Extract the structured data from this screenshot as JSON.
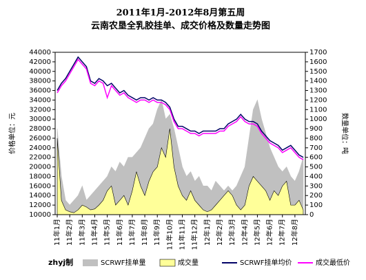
{
  "chart_data": {
    "type": "combo",
    "title": "2011年1月-2012年8月第五周",
    "subtitle": "云南农垦全乳胶挂单、成交价格及数量走势图",
    "y_label": "价格单位：元",
    "y2_label": "数量单位：吨",
    "annotation": "zhyj制",
    "categories": [
      "11年1月",
      null,
      null,
      "11年2月",
      null,
      null,
      "11年3月",
      null,
      null,
      "11年4月",
      null,
      null,
      "11年5月",
      null,
      null,
      "11年6月",
      null,
      null,
      "11年7月",
      null,
      null,
      "11年8月",
      null,
      null,
      "11年9月",
      null,
      null,
      "11年10月",
      null,
      null,
      "11年11月",
      null,
      null,
      "11年12月",
      null,
      null,
      "12年1月",
      null,
      null,
      "12年2月",
      null,
      null,
      "12年3月",
      null,
      null,
      "12年4月",
      null,
      null,
      "12年5月",
      null,
      null,
      "12年6月",
      null,
      null,
      "12年7月",
      null,
      null,
      "12年8月",
      null,
      null
    ],
    "series": [
      {
        "name": "SCRWF挂单量",
        "kind": "area",
        "axis": "y2",
        "color": "#c0c0c0",
        "values": [
          900,
          400,
          150,
          100,
          150,
          200,
          300,
          150,
          200,
          250,
          300,
          350,
          400,
          500,
          450,
          550,
          500,
          600,
          600,
          650,
          700,
          800,
          900,
          950,
          1100,
          1200,
          1000,
          1050,
          900,
          700,
          500,
          400,
          450,
          350,
          400,
          300,
          300,
          250,
          350,
          300,
          250,
          300,
          250,
          300,
          400,
          500,
          800,
          1100,
          1200,
          1000,
          850,
          700,
          600,
          500,
          450,
          500,
          400,
          350,
          450,
          600
        ]
      },
      {
        "name": "成交量",
        "kind": "area",
        "axis": "y2",
        "color": "#ffff99",
        "values": [
          800,
          150,
          50,
          30,
          20,
          50,
          100,
          80,
          50,
          60,
          100,
          150,
          250,
          300,
          100,
          150,
          200,
          100,
          250,
          450,
          300,
          200,
          350,
          450,
          500,
          700,
          600,
          900,
          500,
          300,
          200,
          150,
          250,
          150,
          100,
          50,
          30,
          50,
          100,
          150,
          200,
          250,
          200,
          100,
          50,
          100,
          300,
          400,
          350,
          300,
          250,
          150,
          250,
          200,
          300,
          350,
          100,
          100,
          150,
          50
        ]
      },
      {
        "name": "SCRWF挂单均价",
        "kind": "line",
        "color": "#000066",
        "values": [
          36000,
          37500,
          38500,
          40000,
          41500,
          43000,
          42000,
          41000,
          38000,
          37500,
          38500,
          38000,
          37000,
          37500,
          36500,
          35500,
          36000,
          35000,
          34500,
          34000,
          34500,
          34500,
          34000,
          34500,
          34000,
          34000,
          33500,
          32500,
          30000,
          28500,
          28500,
          28000,
          27500,
          27500,
          27000,
          27500,
          27500,
          27500,
          27500,
          28000,
          28000,
          29000,
          29500,
          30000,
          31000,
          30000,
          29500,
          29500,
          29000,
          27500,
          26500,
          25500,
          25000,
          24500,
          23500,
          24000,
          24500,
          23500,
          22500,
          22000
        ]
      },
      {
        "name": "成交最低价",
        "kind": "line",
        "color": "#ff00ff",
        "values": [
          35500,
          37000,
          38000,
          39500,
          41000,
          42500,
          41500,
          40500,
          37500,
          37000,
          38000,
          37500,
          34500,
          37000,
          36000,
          35000,
          35500,
          34500,
          34000,
          33500,
          34000,
          34000,
          33500,
          34000,
          33500,
          33500,
          33000,
          32000,
          29500,
          28000,
          28000,
          27500,
          27000,
          27000,
          26500,
          27000,
          27000,
          27000,
          27000,
          27500,
          27500,
          28500,
          29000,
          29500,
          30500,
          29500,
          29000,
          29000,
          28500,
          27000,
          26000,
          25000,
          24500,
          24000,
          23000,
          23500,
          24000,
          23000,
          22000,
          21500
        ]
      }
    ],
    "ylim": [
      10000,
      44000
    ],
    "yticks": [
      10000,
      12000,
      14000,
      16000,
      18000,
      20000,
      22000,
      24000,
      26000,
      28000,
      30000,
      32000,
      34000,
      36000,
      38000,
      40000,
      42000,
      44000
    ],
    "y2lim": [
      0,
      1700
    ],
    "y2ticks": [
      0,
      100,
      200,
      300,
      400,
      500,
      600,
      700,
      800,
      900,
      1000,
      1100,
      1200,
      1300,
      1400,
      1500,
      1600,
      1700
    ]
  }
}
